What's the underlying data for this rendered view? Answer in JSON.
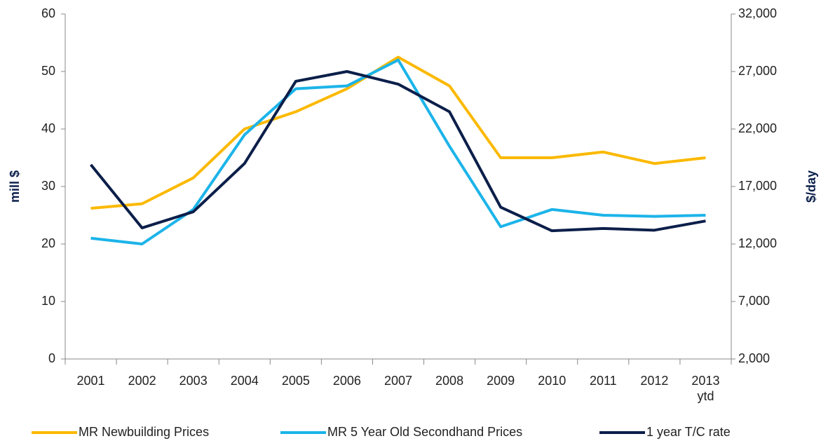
{
  "chart_data": {
    "type": "line",
    "ylabel": "mill $",
    "y2label": "$/day",
    "categories": [
      "2001",
      "2002",
      "2003",
      "2004",
      "2005",
      "2006",
      "2007",
      "2008",
      "2009",
      "2010",
      "2011",
      "2012",
      "2013 ytd"
    ],
    "series": [
      {
        "name": "MR Newbuilding Prices",
        "color": "#fbb900",
        "values": [
          26.2,
          27,
          31.5,
          40,
          43,
          47,
          52.5,
          47.5,
          35,
          35,
          36,
          34,
          35
        ]
      },
      {
        "name": "MR 5 Year Old Secondhand Prices",
        "color": "#1cb4e9",
        "values": [
          21,
          20,
          26,
          39,
          47,
          47.5,
          52,
          37,
          23,
          26,
          25,
          24.8,
          25
        ]
      },
      {
        "name": "1 year T/C rate",
        "color": "#0c1f4a",
        "axis": "y2",
        "values": [
          18900,
          13400,
          14800,
          19000,
          26150,
          27000,
          25900,
          23500,
          15200,
          13150,
          13350,
          13200,
          14000
        ]
      }
    ],
    "ylim": [
      0,
      60
    ],
    "yticks": [
      0,
      10,
      20,
      30,
      40,
      50,
      60
    ],
    "y2lim": [
      2000,
      32000
    ],
    "y2ticks": [
      {
        "value": 2000,
        "label": "2,000"
      },
      {
        "value": 7000,
        "label": "7,000"
      },
      {
        "value": 12000,
        "label": "12,000"
      },
      {
        "value": 17000,
        "label": "17,000"
      },
      {
        "value": 22000,
        "label": "22,000"
      },
      {
        "value": 27000,
        "label": "27,000"
      },
      {
        "value": 32000,
        "label": "32,000"
      }
    ],
    "grid": false,
    "legend": "bottom"
  }
}
